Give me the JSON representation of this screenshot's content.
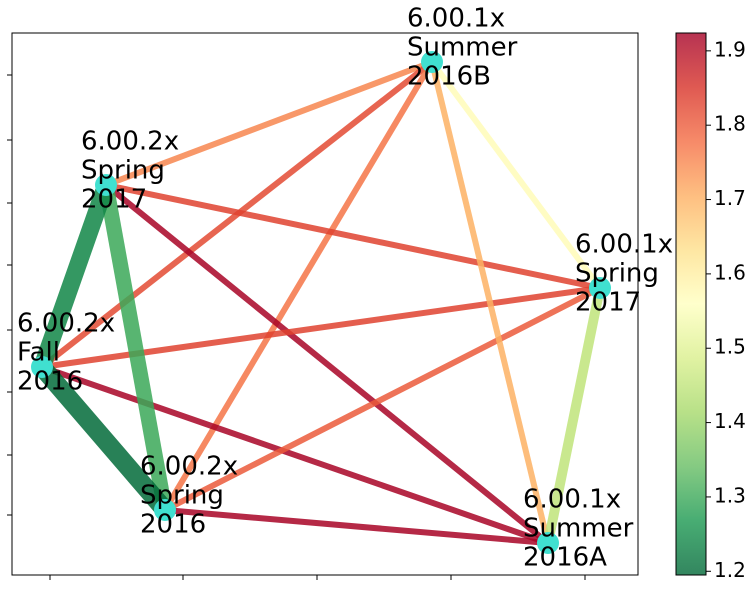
{
  "nodes": [
    {
      "label": [
        "6.00.1x",
        "Summer",
        "2016B"
      ]
    },
    {
      "label": [
        "6.00.2x",
        "Spring",
        "2017"
      ]
    },
    {
      "label": [
        "6.00.1x",
        "Spring",
        "2017"
      ]
    },
    {
      "label": [
        "6.00.2x",
        "Fall",
        "2016"
      ]
    },
    {
      "label": [
        "6.00.2x",
        "Spring",
        "2016"
      ]
    },
    {
      "label": [
        "6.00.1x",
        "Summer",
        "2016A"
      ]
    }
  ],
  "edges": [
    {
      "source": 0,
      "target": 1,
      "value": 1.75
    },
    {
      "source": 0,
      "target": 3,
      "value": 1.82
    },
    {
      "source": 0,
      "target": 4,
      "value": 1.77
    },
    {
      "source": 1,
      "target": 2,
      "value": 1.83
    },
    {
      "source": 1,
      "target": 5,
      "value": 1.92
    },
    {
      "source": 3,
      "target": 2,
      "value": 1.83
    },
    {
      "source": 3,
      "target": 5,
      "value": 1.92
    },
    {
      "source": 4,
      "target": 2,
      "value": 1.8
    },
    {
      "source": 4,
      "target": 5,
      "value": 1.92
    },
    {
      "source": 0,
      "target": 5,
      "value": 1.7
    },
    {
      "source": 0,
      "target": 2,
      "value": 1.57
    },
    {
      "source": 2,
      "target": 5,
      "value": 1.45
    },
    {
      "source": 1,
      "target": 4,
      "value": 1.3
    },
    {
      "source": 3,
      "target": 1,
      "value": 1.24
    },
    {
      "source": 3,
      "target": 4,
      "value": 1.2
    }
  ],
  "colorbar": {
    "lim": [
      1.195,
      1.924
    ],
    "ticks": [
      1.2,
      1.3,
      1.4,
      1.5,
      1.6,
      1.7,
      1.8,
      1.9
    ]
  }
}
